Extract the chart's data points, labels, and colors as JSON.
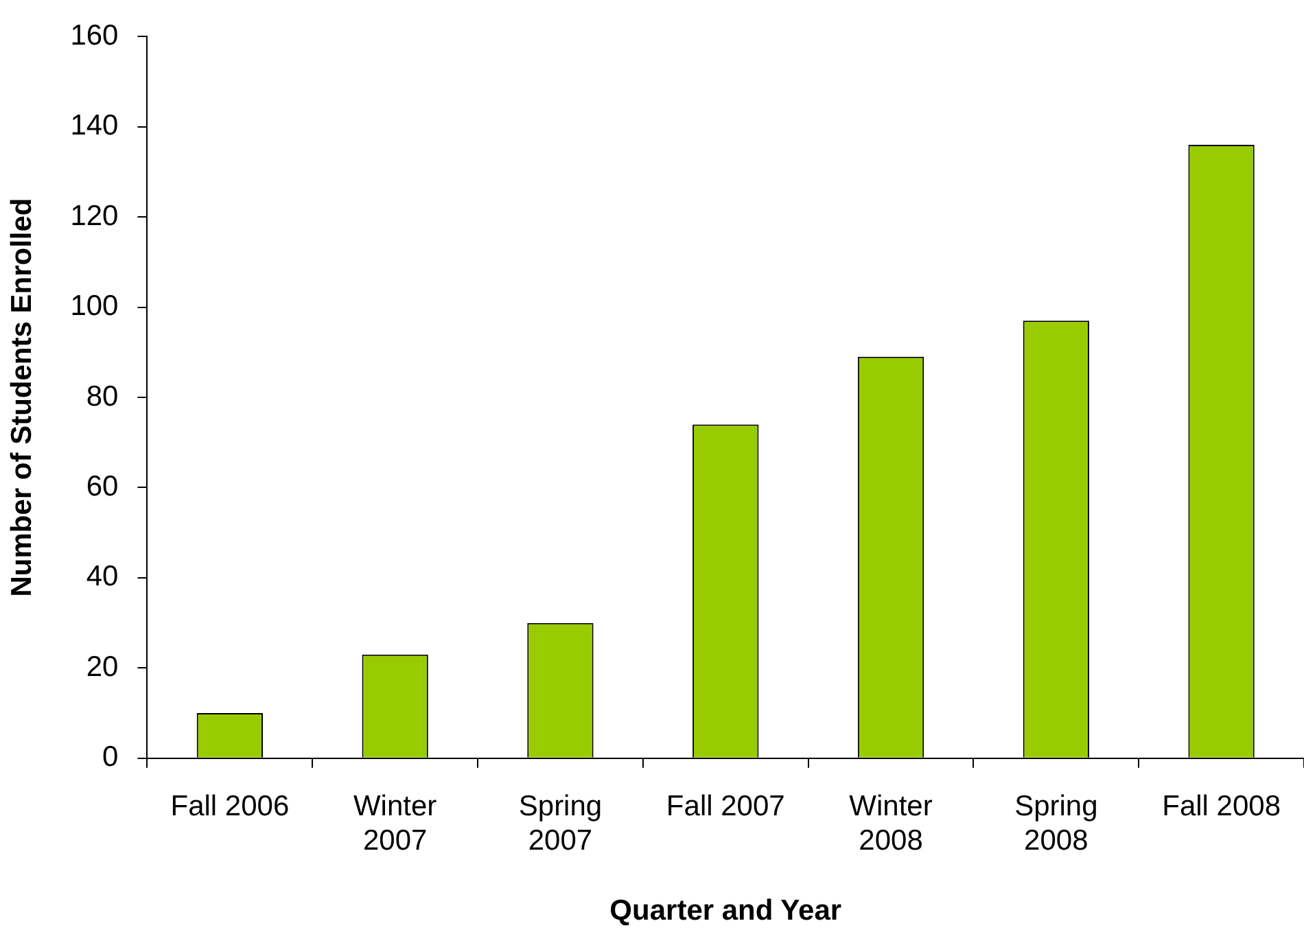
{
  "chart_data": {
    "type": "bar",
    "xlabel": "Quarter and Year",
    "ylabel": "Number of Students Enrolled",
    "categories": [
      "Fall 2006",
      "Winter 2007",
      "Spring 2007",
      "Fall 2007",
      "Winter 2008",
      "Spring 2008",
      "Fall 2008"
    ],
    "values": [
      10,
      23,
      30,
      74,
      89,
      97,
      136
    ],
    "color": "#99cc00",
    "ylim": [
      0,
      160
    ],
    "yticks": [
      0,
      20,
      40,
      60,
      80,
      100,
      120,
      140,
      160
    ],
    "grid": false,
    "legend": false
  }
}
